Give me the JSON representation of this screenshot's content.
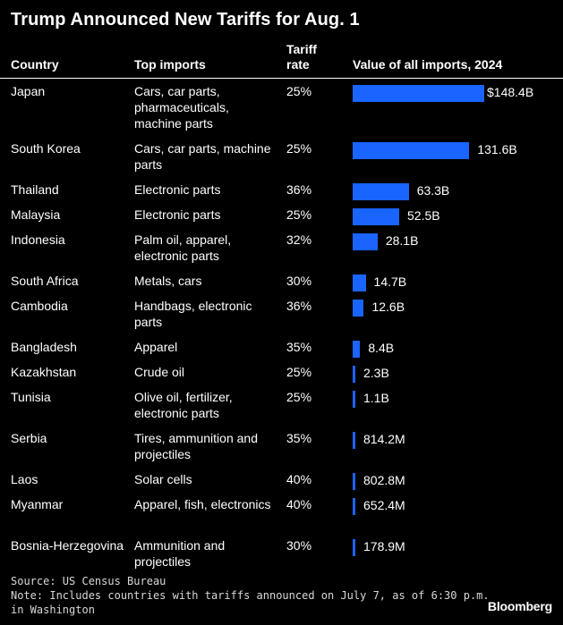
{
  "title": "Trump Announced New Tariffs for Aug. 1",
  "headers": {
    "country": "Country",
    "imports": "Top imports",
    "rate_line1": "Tariff",
    "rate_line2": "rate",
    "value": "Value of all imports, 2024"
  },
  "bar_color": "#1a64ff",
  "chart_data": {
    "type": "bar",
    "title": "Trump Announced New Tariffs for Aug. 1",
    "unit": "USD, billions",
    "categories": [
      "Japan",
      "South Korea",
      "Thailand",
      "Malaysia",
      "Indonesia",
      "South Africa",
      "Cambodia",
      "Bangladesh",
      "Kazakhstan",
      "Tunisia",
      "Serbia",
      "Laos",
      "Myanmar",
      "Bosnia-Herzegovina"
    ],
    "values": [
      148.4,
      131.6,
      63.3,
      52.5,
      28.1,
      14.7,
      12.6,
      8.4,
      2.3,
      1.1,
      0.8142,
      0.8028,
      0.6524,
      0.1789
    ],
    "rows": [
      {
        "country": "Japan",
        "imports": "Cars, car parts, pharmaceuticals, machine parts",
        "rate": "25%",
        "value": 148.4,
        "label": "$148.4B"
      },
      {
        "country": "South Korea",
        "imports": "Cars, car parts, machine parts",
        "rate": "25%",
        "value": 131.6,
        "label": "131.6B"
      },
      {
        "country": "Thailand",
        "imports": "Electronic parts",
        "rate": "36%",
        "value": 63.3,
        "label": "63.3B"
      },
      {
        "country": "Malaysia",
        "imports": "Electronic parts",
        "rate": "25%",
        "value": 52.5,
        "label": "52.5B"
      },
      {
        "country": "Indonesia",
        "imports": "Palm oil, apparel, electronic parts",
        "rate": "32%",
        "value": 28.1,
        "label": "28.1B"
      },
      {
        "country": "South Africa",
        "imports": "Metals, cars",
        "rate": "30%",
        "value": 14.7,
        "label": "14.7B"
      },
      {
        "country": "Cambodia",
        "imports": "Handbags, electronic parts",
        "rate": "36%",
        "value": 12.6,
        "label": "12.6B"
      },
      {
        "country": "Bangladesh",
        "imports": "Apparel",
        "rate": "35%",
        "value": 8.4,
        "label": "8.4B"
      },
      {
        "country": "Kazakhstan",
        "imports": "Crude oil",
        "rate": "25%",
        "value": 2.3,
        "label": "2.3B"
      },
      {
        "country": "Tunisia",
        "imports": "Olive oil, fertilizer, electronic parts",
        "rate": "25%",
        "value": 1.1,
        "label": "1.1B"
      },
      {
        "country": "Serbia",
        "imports": "Tires, ammunition and projectiles",
        "rate": "35%",
        "value": 0.8142,
        "label": "814.2M"
      },
      {
        "country": "Laos",
        "imports": "Solar cells",
        "rate": "40%",
        "value": 0.8028,
        "label": "802.8M"
      },
      {
        "country": "Myanmar",
        "imports": "Apparel, fish, electronics",
        "rate": "40%",
        "value": 0.6524,
        "label": "652.4M"
      },
      {
        "country": "Bosnia-Herzegovina",
        "imports": "Ammunition and projectiles",
        "rate": "30%",
        "value": 0.1789,
        "label": "178.9M"
      }
    ]
  },
  "footer": {
    "source": "Source: US Census Bureau",
    "note_line1": "Note: Includes countries with tariffs announced on July 7, as of 6:30 p.m.",
    "note_line2": "in Washington",
    "brand": "Bloomberg"
  }
}
